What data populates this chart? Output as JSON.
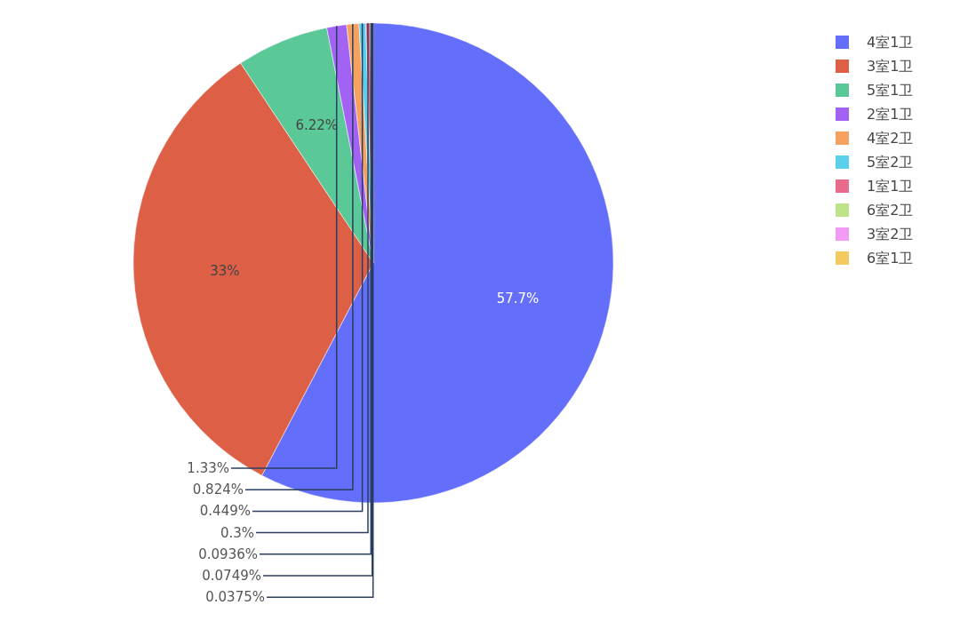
{
  "chart_data": {
    "type": "pie",
    "categories": [
      "4室1卫",
      "3室1卫",
      "5室1卫",
      "2室1卫",
      "4室2卫",
      "5室2卫",
      "1室1卫",
      "6室2卫",
      "3室2卫",
      "6室1卫"
    ],
    "values": [
      57.7,
      33,
      6.22,
      1.33,
      0.824,
      0.449,
      0.3,
      0.0936,
      0.0749,
      0.0375
    ],
    "value_labels": [
      "57.7%",
      "33%",
      "6.22%",
      "1.33%",
      "0.824%",
      "0.449%",
      "0.3%",
      "0.0936%",
      "0.0749%",
      "0.0375%"
    ],
    "colors": [
      "#636efa",
      "#dd5f45",
      "#5ac897",
      "#a263f5",
      "#f5a15f",
      "#5acfeb",
      "#e86a8d",
      "#bde38a",
      "#f29bf5",
      "#f3ca60"
    ],
    "legend": "top right"
  }
}
